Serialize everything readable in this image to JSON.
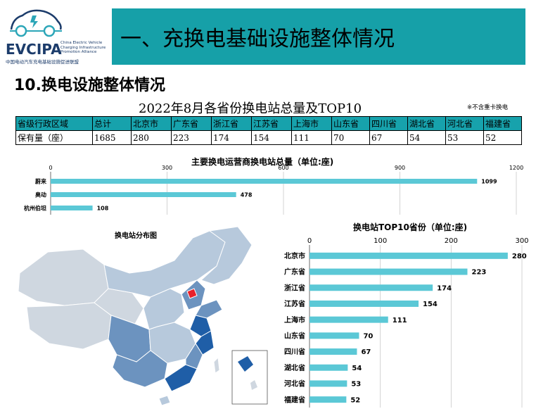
{
  "logo": {
    "name": "EVCIPA",
    "en_lines": [
      "China Electric Vehicle",
      "Charging Infrastructure",
      "Promotion Alliance"
    ],
    "cn": "中国电动汽车充电基础设施促进联盟",
    "color": "#1c3c6b"
  },
  "banner": {
    "title": "一、充换电基础设施整体情况",
    "color": "#16a0a8"
  },
  "section_title": "10.换电设施整体情况",
  "table": {
    "title": "2022年8月各省份换电站总量及TOP10",
    "note": "※不含重卡换电",
    "header": [
      "省级行政区域",
      "总计",
      "北京市",
      "广东省",
      "浙江省",
      "江苏省",
      "上海市",
      "山东省",
      "四川省",
      "湖北省",
      "河北省",
      "福建省"
    ],
    "row": [
      "保有量（座）",
      "1685",
      "280",
      "223",
      "174",
      "154",
      "111",
      "70",
      "67",
      "54",
      "53",
      "52"
    ]
  },
  "chart_data": [
    {
      "type": "bar",
      "orientation": "horizontal",
      "title": "主要换电运营商换电站总量（单位:座)",
      "categories": [
        "蔚来",
        "奥动",
        "杭州伯坦"
      ],
      "values": [
        1099,
        478,
        108
      ],
      "xlim": [
        0,
        1200
      ],
      "xticks": [
        0,
        300,
        600,
        900,
        1200
      ],
      "grid": true,
      "color": "#5bc8d6"
    },
    {
      "type": "bar",
      "orientation": "horizontal",
      "title": "换电站TOP10省份（单位:座)",
      "categories": [
        "北京市",
        "广东省",
        "浙江省",
        "江苏省",
        "上海市",
        "山东省",
        "四川省",
        "湖北省",
        "河北省",
        "福建省"
      ],
      "values": [
        280,
        223,
        174,
        154,
        111,
        70,
        67,
        54,
        53,
        52
      ],
      "xlim": [
        0,
        300
      ],
      "xticks": [
        0,
        100,
        200,
        300
      ],
      "grid": true,
      "color": "#5bc8d6"
    }
  ],
  "map": {
    "title": "换电站分布图",
    "colors": {
      "none": "#cfd7e0",
      "low": "#b7c9dc",
      "mid": "#6c93bf",
      "high": "#1f5ea7",
      "top": "#e8202a"
    }
  }
}
